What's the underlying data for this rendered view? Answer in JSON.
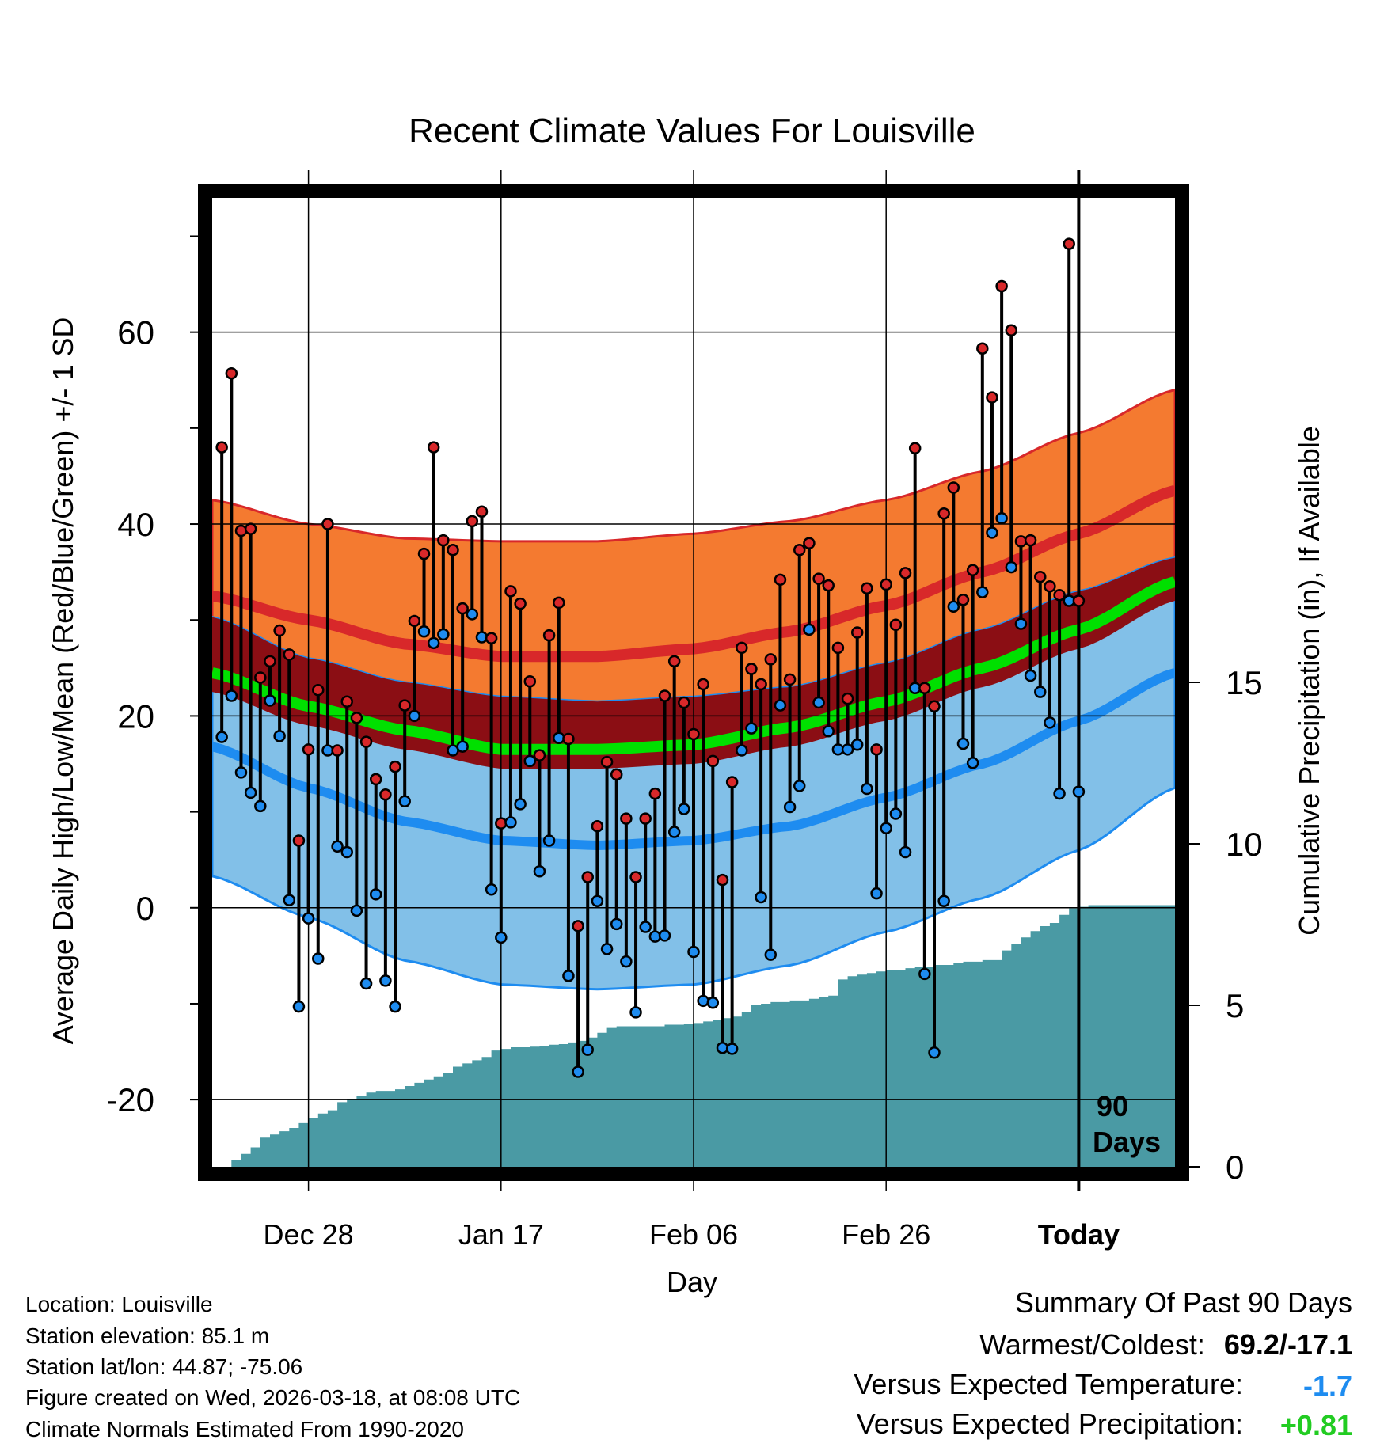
{
  "chart_data": {
    "type": "line",
    "title": "Recent Climate Values For Louisville",
    "xlabel": "Day",
    "ylabel": "Average Daily High/Low/Mean (Red/Blue/Green) +/- 1 SD",
    "y2label": "Cumulative Precipitation (in), If Available",
    "x_tick_labels": [
      "Dec 28",
      "Jan 17",
      "Feb 06",
      "Feb 26",
      "Today"
    ],
    "x_tick_days": [
      10,
      30,
      50,
      70,
      90
    ],
    "x_range": [
      0,
      100
    ],
    "ylim": [
      -27,
      74
    ],
    "y_ticks": [
      -20,
      0,
      20,
      40,
      60
    ],
    "y2lim": [
      0,
      30
    ],
    "y2_ticks": [
      0,
      5,
      10,
      15
    ],
    "today_label": "90\nDays",
    "colors": {
      "high_band": "#f47a30",
      "high_line": "#d8282a",
      "mean_band": "#8b0e14",
      "mean_line": "#00e000",
      "low_band": "#82c0e8",
      "low_line": "#1e8cf0",
      "precip": "#4a9aa4",
      "high_dot": "#d8282a",
      "low_dot": "#1e8cf0",
      "temp_anomaly": "#1e8cf0",
      "precip_anomaly": "#22cc22"
    },
    "normals": {
      "days": [
        0,
        10,
        20,
        30,
        40,
        50,
        60,
        70,
        80,
        90,
        100
      ],
      "high_mean": [
        32.5,
        30,
        27.5,
        26.2,
        26.2,
        27,
        28.8,
        31.5,
        35,
        39,
        43.5
      ],
      "high_sd": [
        10,
        10,
        11,
        12,
        12,
        12,
        11.5,
        11,
        10.5,
        10.5,
        10.5
      ],
      "low_mean": [
        16.8,
        12.5,
        9,
        7,
        6.5,
        7,
        8.5,
        11.5,
        15,
        19.5,
        24.5
      ],
      "low_sd": [
        13.5,
        13.5,
        14.5,
        15,
        15,
        15,
        14.5,
        14,
        14,
        13.5,
        12
      ],
      "mean_mean": [
        24.5,
        21,
        18.5,
        16.5,
        16.5,
        17,
        18.8,
        21.5,
        25,
        29,
        34
      ]
    },
    "highs": [
      48,
      55.7,
      39.3,
      39.5,
      24,
      25.7,
      28.9,
      26.4,
      7,
      16.5,
      22.7,
      40,
      16.4,
      21.5,
      19.8,
      17.3,
      13.4,
      11.8,
      14.7,
      21.1,
      29.9,
      36.9,
      48,
      38.3,
      37.3,
      31.2,
      40.3,
      41.3,
      28.1,
      8.8,
      33,
      31.7,
      23.6,
      15.9,
      28.4,
      31.8,
      17.6,
      -1.9,
      3.2,
      8.5,
      15.2,
      13.9,
      9.3,
      3.2,
      9.3,
      11.9,
      22.1,
      25.7,
      21.4,
      18.1,
      23.3,
      15.3,
      2.9,
      13.1,
      27.1,
      24.9,
      23.3,
      25.9,
      34.2,
      23.8,
      37.3,
      38,
      34.3,
      33.6,
      27.1,
      21.8,
      28.7,
      33.3,
      16.5,
      33.7,
      29.5,
      34.9,
      47.9,
      22.9,
      21,
      41.1,
      43.8,
      32.1,
      35.2,
      58.3,
      53.2,
      64.8,
      60.2,
      38.2,
      38.3,
      34.5,
      33.5,
      32.6,
      69.2,
      32
    ],
    "lows": [
      17.8,
      22.1,
      14.1,
      12,
      10.6,
      21.6,
      17.9,
      0.8,
      -10.3,
      -1.1,
      -5.3,
      16.4,
      6.4,
      5.8,
      -0.3,
      -7.9,
      1.4,
      -7.6,
      -10.3,
      11.1,
      20,
      28.8,
      27.6,
      28.5,
      16.4,
      16.8,
      30.6,
      28.2,
      1.9,
      -3.1,
      8.9,
      10.8,
      15.3,
      3.8,
      7,
      17.7,
      -7.1,
      -17.1,
      -14.8,
      0.7,
      -4.3,
      -1.7,
      -5.6,
      -10.9,
      -2,
      -3,
      -2.9,
      7.9,
      10.3,
      -4.6,
      -9.7,
      -9.9,
      -14.6,
      -14.7,
      16.4,
      18.7,
      1.1,
      -4.9,
      21.1,
      10.5,
      12.7,
      29,
      21.4,
      18.4,
      16.5,
      16.5,
      17,
      12.4,
      1.5,
      8.3,
      9.8,
      5.8,
      22.9,
      -6.9,
      -15.1,
      0.7,
      31.4,
      17.1,
      15.1,
      32.9,
      39.1,
      40.6,
      35.5,
      29.6,
      24.2,
      22.5,
      19.3,
      11.9,
      32,
      12.1
    ],
    "precip": [
      0,
      0.2,
      0.4,
      0.6,
      0.9,
      1.0,
      1.1,
      1.2,
      1.35,
      1.5,
      1.65,
      1.75,
      2.0,
      2.1,
      2.2,
      2.3,
      2.35,
      2.35,
      2.4,
      2.5,
      2.6,
      2.7,
      2.8,
      2.9,
      3.1,
      3.2,
      3.3,
      3.4,
      3.6,
      3.65,
      3.7,
      3.7,
      3.72,
      3.75,
      3.78,
      3.8,
      3.85,
      3.9,
      4.0,
      4.15,
      4.3,
      4.35,
      4.35,
      4.35,
      4.35,
      4.35,
      4.4,
      4.4,
      4.42,
      4.45,
      4.5,
      4.55,
      4.6,
      4.65,
      4.8,
      5.0,
      5.05,
      5.1,
      5.1,
      5.15,
      5.15,
      5.2,
      5.25,
      5.3,
      5.8,
      5.9,
      5.95,
      6.0,
      6.05,
      6.1,
      6.1,
      6.15,
      6.2,
      6.2,
      6.25,
      6.25,
      6.3,
      6.35,
      6.35,
      6.4,
      6.4,
      6.7,
      6.9,
      7.1,
      7.3,
      7.45,
      7.55,
      7.8,
      8.0,
      8.05,
      8.1,
      8.1,
      8.1,
      8.1,
      8.1,
      8.1,
      8.1,
      8.1,
      8.1,
      8.1
    ]
  },
  "metadata": {
    "location": "Location: Louisville",
    "elevation": "Station elevation: 85.1 m",
    "latlon": "Station lat/lon: 44.87; -75.06",
    "created": "Figure created on Wed, 2026-03-18, at 08:08 UTC",
    "normals": "Climate Normals Estimated From 1990-2020"
  },
  "summary": {
    "title": "Summary Of Past 90 Days",
    "warm_cold_label": "Warmest/Coldest:",
    "warm_cold_value": "69.2/-17.1",
    "temp_label": "Versus Expected Temperature:",
    "temp_value": "-1.7",
    "precip_label": "Versus Expected Precipitation:",
    "precip_value": "+0.81"
  }
}
